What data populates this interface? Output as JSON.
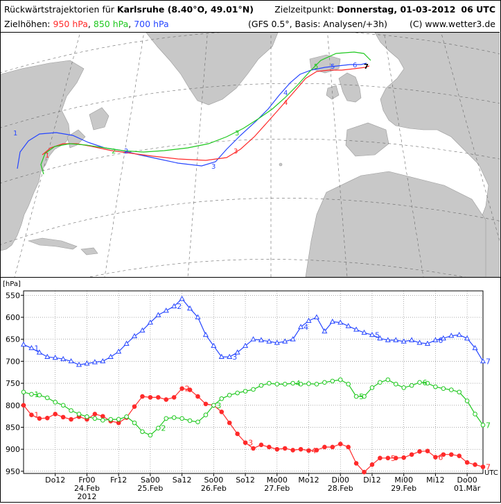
{
  "header": {
    "title_prefix": "Rückwärtstrajektorien für",
    "location": "Karlsruhe (8.40°O, 49.01°N)",
    "target_label": "Zielzeitpunkt:",
    "target_value": "Donnerstag, 01-03-2012",
    "target_time": "06 UTC",
    "levels_label": "Zielhöhen:",
    "level_950": "950 hPa",
    "level_850": "850 hPa",
    "level_700": "700 hPa",
    "model_info": "(GFS 0.5°, Basis: Analysen/+3h)",
    "credit": "(C) www.wetter3.de",
    "sep1": ",",
    "sep2": ","
  },
  "colors": {
    "red": "#ff2a2a",
    "green": "#1ec81e",
    "blue": "#2646ff",
    "land": "#c8c8c8",
    "sea": "#ffffff"
  },
  "chart_data": {
    "type": "line",
    "ylabel": "[hPa]",
    "y_inverted": true,
    "ylim": [
      955,
      540
    ],
    "yticks": [
      550,
      600,
      650,
      700,
      750,
      800,
      850,
      900,
      950
    ],
    "x_unit": "UTC",
    "xlim_hours_before_target": [
      -174,
      0
    ],
    "xticks": [
      {
        "h": -162,
        "label": "Do12",
        "date": ""
      },
      {
        "h": -150,
        "label": "Fr00",
        "date": "24.Feb"
      },
      {
        "h": -138,
        "label": "Fr12",
        "date": ""
      },
      {
        "h": -126,
        "label": "Sa00",
        "date": "25.Feb"
      },
      {
        "h": -114,
        "label": "Sa12",
        "date": ""
      },
      {
        "h": -102,
        "label": "So00",
        "date": "26.Feb"
      },
      {
        "h": -90,
        "label": "So12",
        "date": ""
      },
      {
        "h": -78,
        "label": "Mo00",
        "date": "27.Feb"
      },
      {
        "h": -66,
        "label": "Mo12",
        "date": ""
      },
      {
        "h": -54,
        "label": "Di00",
        "date": "28.Feb"
      },
      {
        "h": -42,
        "label": "Di12",
        "date": ""
      },
      {
        "h": -30,
        "label": "Mi00",
        "date": "29.Feb"
      },
      {
        "h": -18,
        "label": "Mi12",
        "date": ""
      },
      {
        "h": -6,
        "label": "Do00",
        "date": "01.Mär"
      }
    ],
    "year_label": "2012",
    "series": [
      {
        "name": "950 hPa",
        "color": "#ff2a2a",
        "marker": "dot",
        "x": [
          -174,
          -171,
          -168,
          -165,
          -162,
          -159,
          -156,
          -153,
          -150,
          -147,
          -144,
          -141,
          -138,
          -135,
          -132,
          -129,
          -126,
          -123,
          -120,
          -117,
          -114,
          -111,
          -108,
          -105,
          -102,
          -99,
          -96,
          -93,
          -90,
          -87,
          -84,
          -81,
          -78,
          -75,
          -72,
          -69,
          -66,
          -63,
          -60,
          -57,
          -54,
          -51,
          -48,
          -45,
          -42,
          -39,
          -36,
          -33,
          -30,
          -27,
          -24,
          -21,
          -18,
          -15,
          -12,
          -9,
          -6,
          -3,
          0
        ],
        "y": [
          800,
          822,
          830,
          829,
          820,
          827,
          832,
          826,
          832,
          820,
          825,
          836,
          840,
          828,
          803,
          780,
          782,
          782,
          787,
          782,
          762,
          765,
          780,
          797,
          800,
          815,
          840,
          865,
          885,
          898,
          890,
          895,
          900,
          898,
          902,
          900,
          903,
          902,
          895,
          895,
          888,
          895,
          932,
          952,
          935,
          920,
          920,
          920,
          919,
          912,
          905,
          904,
          918,
          912,
          912,
          915,
          930,
          935,
          940
        ],
        "labels": [
          {
            "i": 1,
            "t": "1"
          },
          {
            "i": 20,
            "t": "2"
          },
          {
            "i": 28,
            "t": "3"
          },
          {
            "i": 36,
            "t": "4"
          },
          {
            "i": 46,
            "t": "5"
          },
          {
            "i": 52,
            "t": "6"
          },
          {
            "i": 58,
            "t": "7"
          }
        ]
      },
      {
        "name": "850 hPa",
        "color": "#1ec81e",
        "marker": "circle",
        "x": [
          -174,
          -171,
          -168,
          -165,
          -162,
          -159,
          -156,
          -153,
          -150,
          -147,
          -144,
          -141,
          -138,
          -135,
          -132,
          -129,
          -126,
          -123,
          -120,
          -117,
          -114,
          -111,
          -108,
          -105,
          -102,
          -99,
          -96,
          -93,
          -90,
          -87,
          -84,
          -81,
          -78,
          -75,
          -72,
          -69,
          -66,
          -63,
          -60,
          -57,
          -54,
          -51,
          -48,
          -45,
          -42,
          -39,
          -36,
          -33,
          -30,
          -27,
          -24,
          -21,
          -18,
          -15,
          -12,
          -9,
          -6,
          -3,
          0
        ],
        "y": [
          770,
          775,
          777,
          783,
          793,
          800,
          812,
          820,
          826,
          830,
          834,
          832,
          832,
          826,
          840,
          860,
          868,
          852,
          830,
          828,
          830,
          835,
          838,
          822,
          800,
          785,
          777,
          772,
          768,
          764,
          755,
          750,
          752,
          752,
          750,
          752,
          751,
          752,
          748,
          745,
          742,
          752,
          780,
          780,
          760,
          748,
          742,
          752,
          760,
          755,
          748,
          750,
          758,
          762,
          765,
          770,
          790,
          820,
          845
        ],
        "labels": [
          {
            "i": 1,
            "t": "1"
          },
          {
            "i": 17,
            "t": "2"
          },
          {
            "i": 24,
            "t": "3"
          },
          {
            "i": 34,
            "t": "4"
          },
          {
            "i": 42,
            "t": "5"
          },
          {
            "i": 50,
            "t": "6"
          },
          {
            "i": 58,
            "t": "7"
          }
        ]
      },
      {
        "name": "700 hPa",
        "color": "#2646ff",
        "marker": "triangle",
        "x": [
          -174,
          -171,
          -168,
          -165,
          -162,
          -159,
          -156,
          -153,
          -150,
          -147,
          -144,
          -141,
          -138,
          -135,
          -132,
          -129,
          -126,
          -123,
          -120,
          -117,
          -114,
          -111,
          -108,
          -105,
          -102,
          -99,
          -96,
          -93,
          -90,
          -87,
          -84,
          -81,
          -78,
          -75,
          -72,
          -69,
          -66,
          -63,
          -60,
          -57,
          -54,
          -51,
          -48,
          -45,
          -42,
          -39,
          -36,
          -33,
          -30,
          -27,
          -24,
          -21,
          -18,
          -15,
          -12,
          -9,
          -6,
          -3,
          0
        ],
        "y": [
          662,
          670,
          680,
          690,
          692,
          695,
          700,
          708,
          705,
          702,
          700,
          690,
          678,
          660,
          643,
          630,
          612,
          595,
          585,
          575,
          558,
          580,
          600,
          640,
          665,
          690,
          690,
          680,
          665,
          650,
          652,
          655,
          658,
          655,
          650,
          622,
          608,
          600,
          632,
          610,
          612,
          620,
          628,
          635,
          640,
          648,
          652,
          652,
          655,
          652,
          658,
          660,
          652,
          648,
          642,
          640,
          648,
          670,
          700
        ],
        "labels": [
          {
            "i": 1,
            "t": "1"
          },
          {
            "i": 19,
            "t": "2"
          },
          {
            "i": 26,
            "t": "3"
          },
          {
            "i": 35,
            "t": "4"
          },
          {
            "i": 44,
            "t": "5"
          },
          {
            "i": 52,
            "t": "6"
          },
          {
            "i": 58,
            "t": "7"
          }
        ]
      }
    ]
  }
}
